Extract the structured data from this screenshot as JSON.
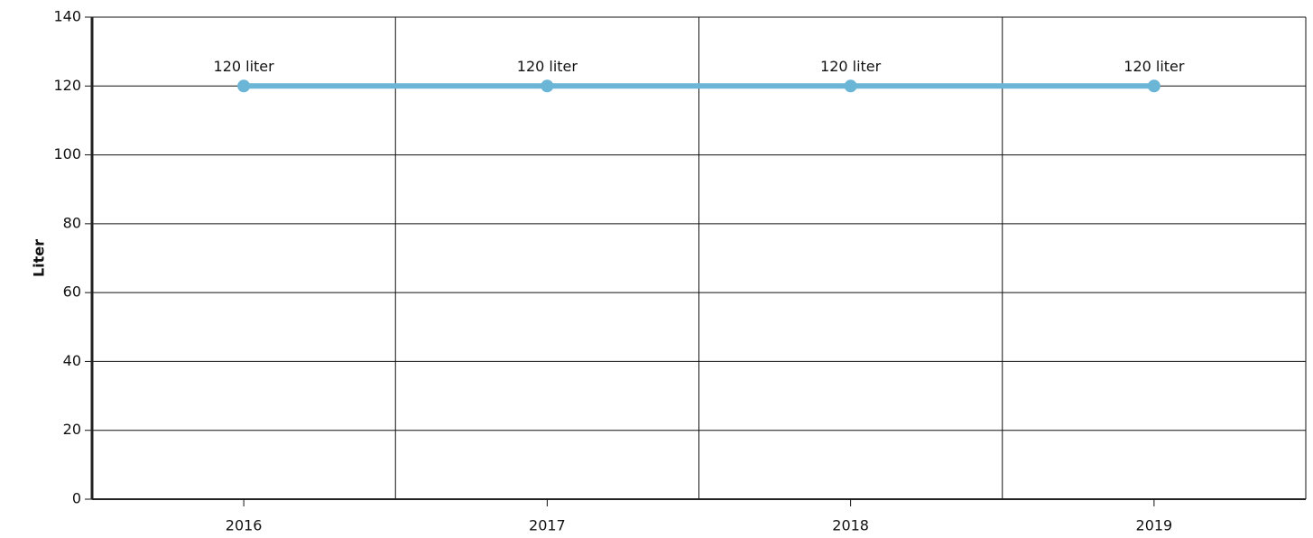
{
  "chart_data": {
    "type": "line",
    "y_label": "Liter",
    "categories": [
      "2016",
      "2017",
      "2018",
      "2019"
    ],
    "series": [
      {
        "name": "Liter",
        "color": "#6bb5d6",
        "values": [
          120,
          120,
          120,
          120
        ],
        "value_labels": [
          "120 liter",
          "120 liter",
          "120 liter",
          "120 liter"
        ]
      }
    ],
    "ylim": [
      0,
      140
    ],
    "yticks": [
      0,
      20,
      40,
      60,
      80,
      100,
      120,
      140
    ],
    "grid": true
  }
}
